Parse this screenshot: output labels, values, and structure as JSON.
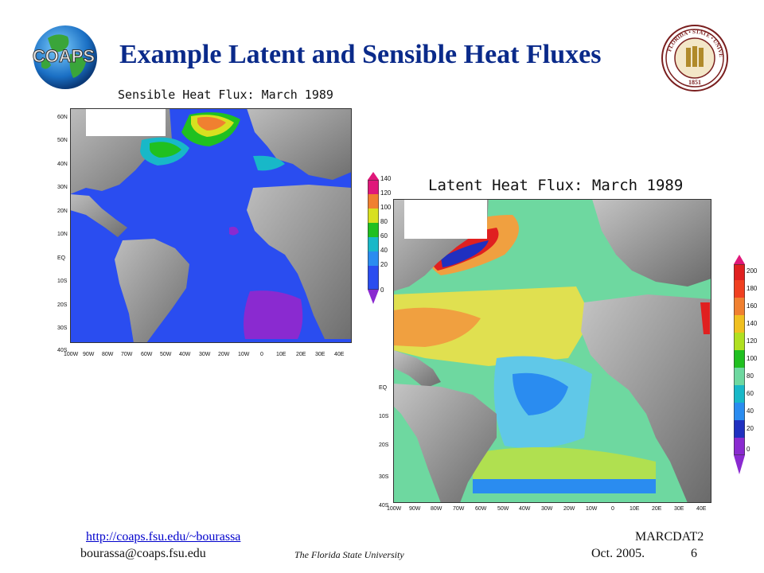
{
  "slide": {
    "title": "Example Latent and Sensible Heat Fluxes",
    "logo_text": "COAPS",
    "seal_text": "FLORIDA STATE UNIVERSITY 1851"
  },
  "sensible_map": {
    "title": "Sensible Heat Flux: March 1989",
    "lat_labels": [
      "60N",
      "50N",
      "40N",
      "30N",
      "20N",
      "10N",
      "EQ",
      "10S",
      "20S",
      "30S",
      "40S"
    ],
    "lon_labels": [
      "100W",
      "90W",
      "80W",
      "70W",
      "60W",
      "50W",
      "40W",
      "30W",
      "20W",
      "10W",
      "0",
      "10E",
      "20E",
      "30E",
      "40E"
    ],
    "colorbar_ticks": [
      "140",
      "120",
      "100",
      "80",
      "60",
      "40",
      "20",
      "0"
    ]
  },
  "latent_map": {
    "title": "Latent Heat Flux: March 1989",
    "lat_labels": [
      "EQ",
      "10S",
      "20S",
      "30S",
      "40S"
    ],
    "lon_labels": [
      "100W",
      "90W",
      "80W",
      "70W",
      "60W",
      "50W",
      "40W",
      "30W",
      "20W",
      "10W",
      "0",
      "10E",
      "20E",
      "30E",
      "40E"
    ],
    "colorbar_ticks": [
      "200",
      "180",
      "160",
      "140",
      "120",
      "100",
      "80",
      "60",
      "40",
      "20",
      "0"
    ]
  },
  "footer": {
    "link": "http://coaps.fsu.edu/~bourassa",
    "email": "bourassa@coaps.fsu.edu",
    "university": "The Florida State University",
    "conference": "MARCDAT2",
    "date": "Oct. 2005.",
    "page": "6"
  }
}
